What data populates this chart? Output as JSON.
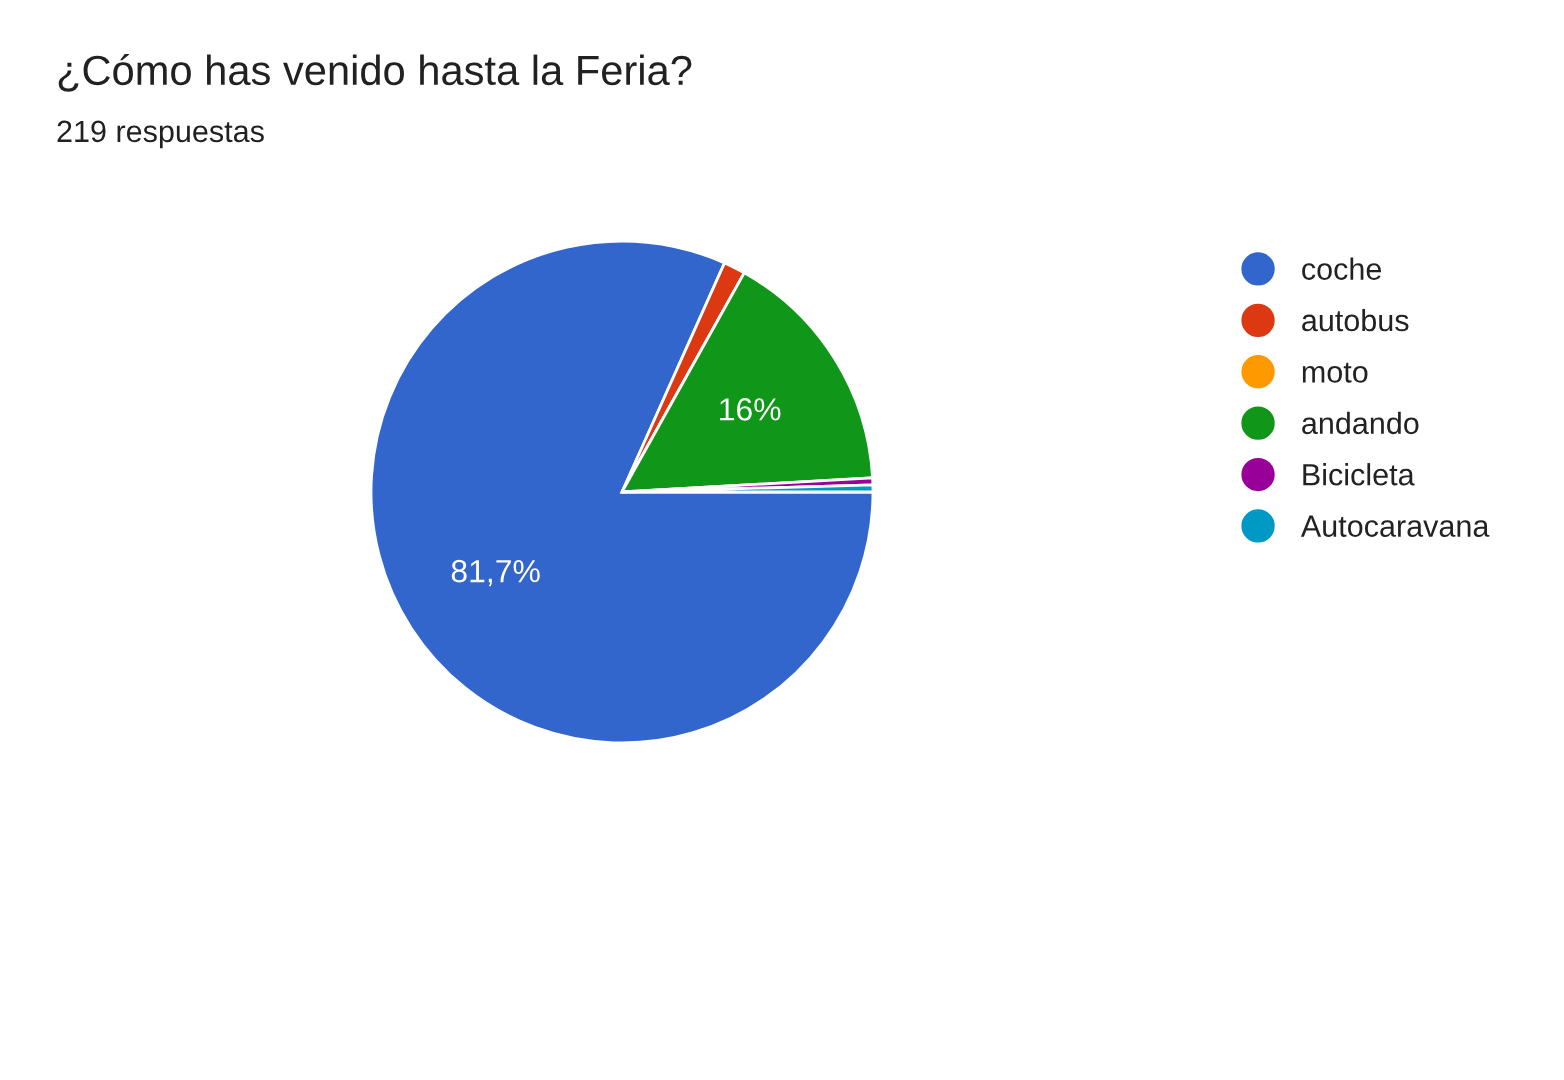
{
  "chart_data": {
    "type": "pie",
    "title": "¿Cómo has venido hasta la Feria?",
    "subtitle": "219 respuestas",
    "categories": [
      "coche",
      "autobus",
      "moto",
      "andando",
      "Bicicleta",
      "Autocaravana"
    ],
    "values": [
      81.7,
      1.4,
      0,
      16,
      0.45,
      0.45
    ],
    "colors": [
      "#3366cc",
      "#dc3912",
      "#ff9900",
      "#109618",
      "#990099",
      "#0099c6"
    ],
    "value_labels": [
      "81,7%",
      null,
      null,
      "16%",
      null,
      null
    ],
    "legend": "right"
  }
}
